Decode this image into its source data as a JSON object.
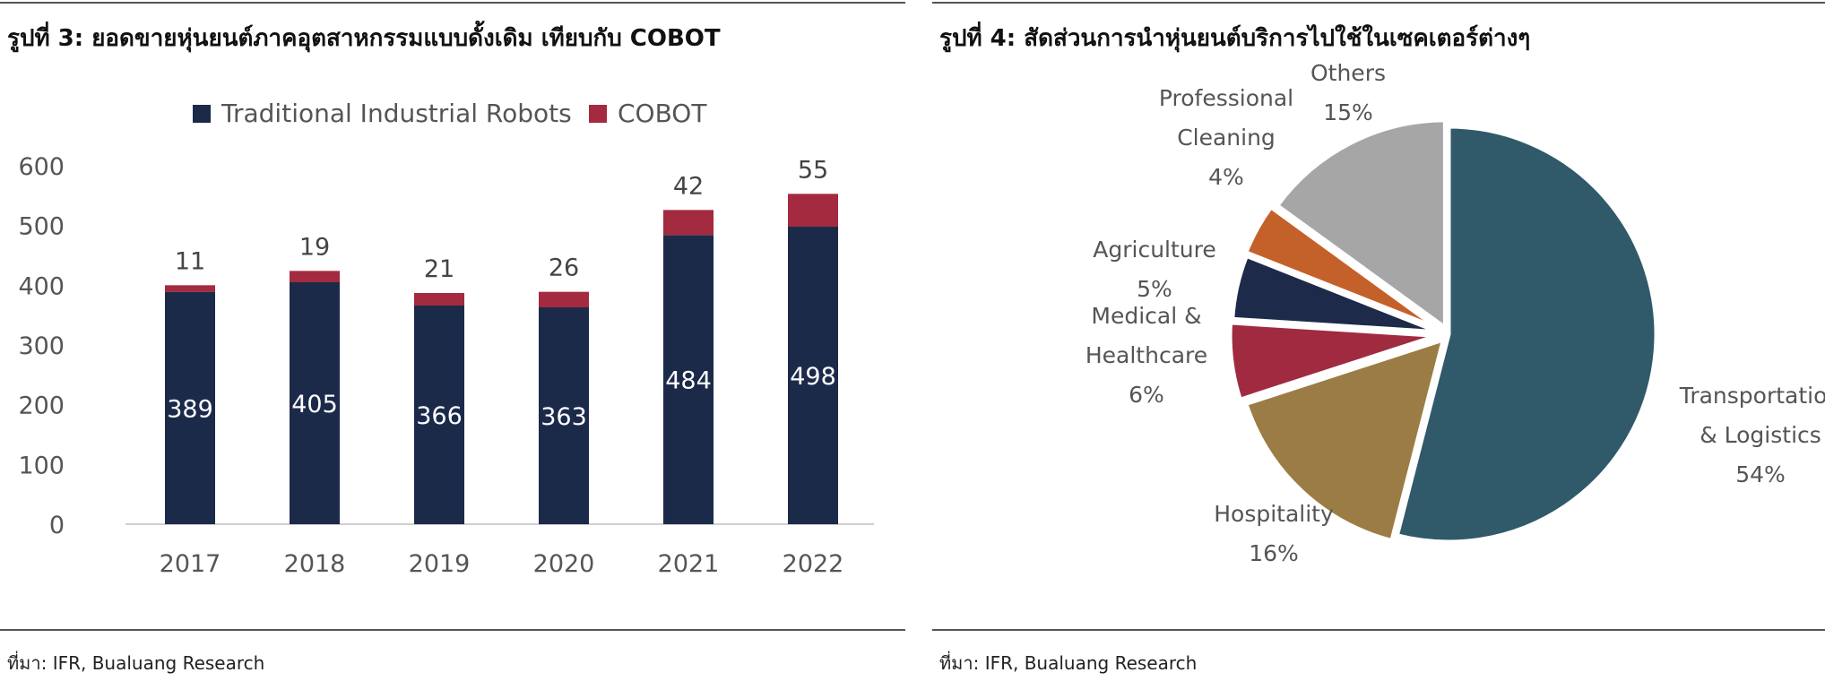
{
  "figures": [
    {
      "title": "รูปที่ 3: ยอดขายหุ่นยนต์ภาคอุตสาหกรรมแบบดั้งเดิม เทียบกับ COBOT",
      "source": "ที่มา: IFR,  Bualuang Research"
    },
    {
      "title": "รูปที่ 4: สัดส่วนการนำหุ่นยนต์บริการไปใช้ในเซคเตอร์ต่างๆ",
      "source": "ที่มา: IFR,  Bualuang Research"
    }
  ],
  "chart_data": [
    {
      "type": "bar",
      "stacked": true,
      "categories": [
        "2017",
        "2018",
        "2019",
        "2020",
        "2021",
        "2022"
      ],
      "series": [
        {
          "name": "Traditional Industrial Robots",
          "values": [
            389,
            405,
            366,
            363,
            484,
            498
          ],
          "color": "#1c2a4a"
        },
        {
          "name": "COBOT",
          "values": [
            11,
            19,
            21,
            26,
            42,
            55
          ],
          "color": "#a32a3f"
        }
      ],
      "ylim": [
        0,
        600
      ],
      "yticks": [
        "0",
        "100",
        "200",
        "300",
        "400",
        "500",
        "600"
      ],
      "legend": "top-center",
      "grid": false
    },
    {
      "type": "pie",
      "slices": [
        {
          "label": "Transportation & Logistics",
          "lines": [
            "Transportation",
            "& Logistics"
          ],
          "value": 54,
          "pct": "54%",
          "color": "#30596a"
        },
        {
          "label": "Hospitality",
          "lines": [
            "Hospitality"
          ],
          "value": 16,
          "pct": "16%",
          "color": "#9b7c45"
        },
        {
          "label": "Medical & Healthcare",
          "lines": [
            "Medical &",
            "Healthcare"
          ],
          "value": 6,
          "pct": "6%",
          "color": "#a02b40"
        },
        {
          "label": "Agriculture",
          "lines": [
            "Agriculture"
          ],
          "value": 5,
          "pct": "5%",
          "color": "#1d2a4a"
        },
        {
          "label": "Professional Cleaning",
          "lines": [
            "Professional",
            "Cleaning"
          ],
          "value": 4,
          "pct": "4%",
          "color": "#c4612a"
        },
        {
          "label": "Others",
          "lines": [
            "Others"
          ],
          "value": 15,
          "pct": "15%",
          "color": "#a6a6a6"
        }
      ]
    }
  ]
}
